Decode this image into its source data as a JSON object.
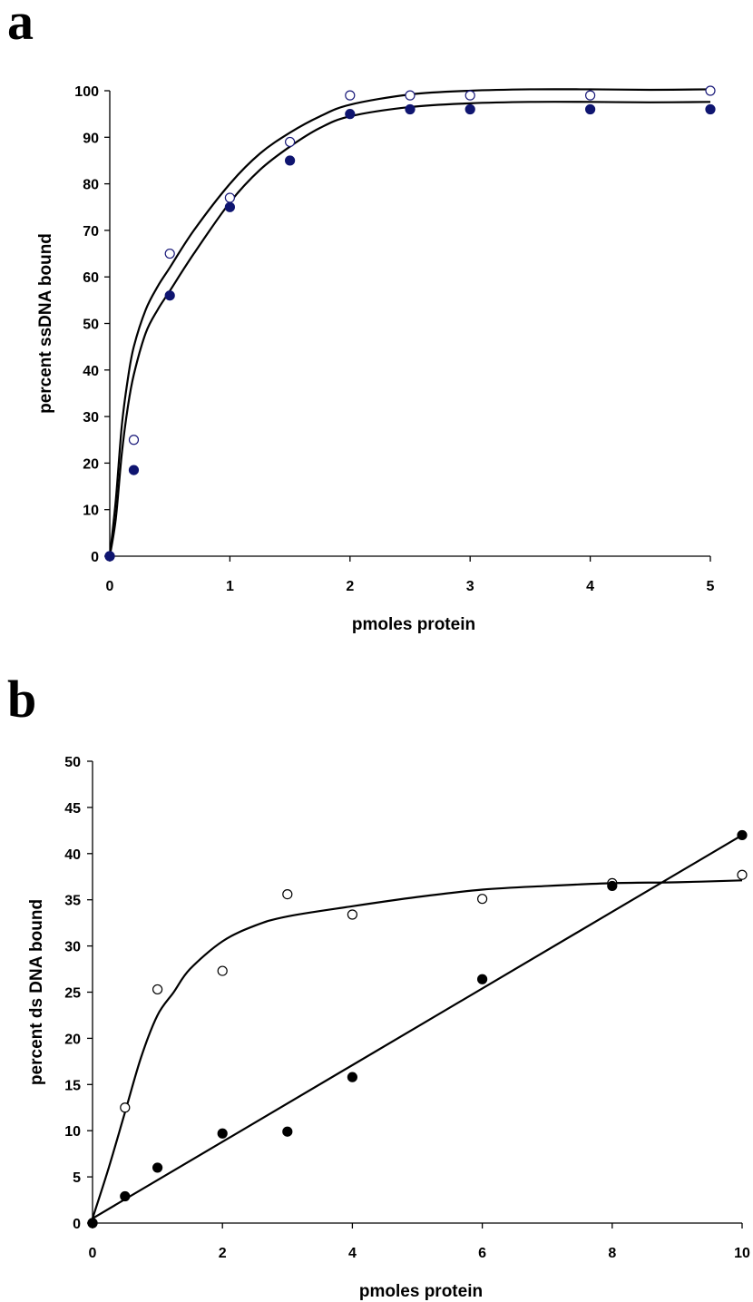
{
  "chart_data": [
    {
      "panel_label": "a",
      "type": "scatter",
      "xlabel": "pmoles protein",
      "ylabel": "percent ssDNA bound",
      "xlim": [
        0,
        5
      ],
      "ylim": [
        0,
        100
      ],
      "xticks": [
        0,
        1,
        2,
        3,
        4,
        5
      ],
      "yticks": [
        0,
        10,
        20,
        30,
        40,
        50,
        60,
        70,
        80,
        90,
        100
      ],
      "grid": false,
      "legend": "none",
      "series": [
        {
          "marker": "open-circle",
          "color": "#1a1a7a",
          "x": [
            0,
            0.2,
            0.5,
            1,
            1.5,
            2,
            2.5,
            3,
            4,
            5
          ],
          "y": [
            0,
            25,
            65,
            77,
            89,
            99,
            99,
            99,
            99,
            100
          ],
          "fit": [
            [
              0,
              0
            ],
            [
              0.05,
              12
            ],
            [
              0.1,
              28
            ],
            [
              0.15,
              38
            ],
            [
              0.2,
              45
            ],
            [
              0.3,
              53
            ],
            [
              0.4,
              58
            ],
            [
              0.5,
              62
            ],
            [
              0.7,
              70
            ],
            [
              1,
              80
            ],
            [
              1.25,
              86.5
            ],
            [
              1.5,
              91
            ],
            [
              1.75,
              94.5
            ],
            [
              2,
              97
            ],
            [
              2.5,
              99.2
            ],
            [
              3,
              100
            ],
            [
              3.5,
              100.3
            ],
            [
              4,
              100.3
            ],
            [
              4.5,
              100.2
            ],
            [
              5,
              100.3
            ]
          ]
        },
        {
          "marker": "filled-circle",
          "color": "#0f1570",
          "x": [
            0,
            0.2,
            0.5,
            1,
            1.5,
            2,
            2.5,
            3,
            4,
            5
          ],
          "y": [
            0,
            18.5,
            56,
            75,
            85,
            95,
            96,
            96,
            96,
            96
          ],
          "fit": [
            [
              0,
              0
            ],
            [
              0.05,
              8
            ],
            [
              0.1,
              22
            ],
            [
              0.15,
              32
            ],
            [
              0.2,
              39
            ],
            [
              0.3,
              48
            ],
            [
              0.4,
              53
            ],
            [
              0.5,
              57
            ],
            [
              0.7,
              65
            ],
            [
              1,
              76
            ],
            [
              1.25,
              83
            ],
            [
              1.5,
              88
            ],
            [
              1.75,
              92
            ],
            [
              2,
              94.5
            ],
            [
              2.5,
              96.5
            ],
            [
              3,
              97.3
            ],
            [
              3.5,
              97.6
            ],
            [
              4,
              97.6
            ],
            [
              4.5,
              97.5
            ],
            [
              5,
              97.6
            ]
          ]
        }
      ]
    },
    {
      "panel_label": "b",
      "type": "scatter",
      "xlabel": "pmoles protein",
      "ylabel": "percent ds DNA bound",
      "xlim": [
        0,
        10
      ],
      "ylim": [
        0,
        50
      ],
      "xticks": [
        0,
        2,
        4,
        6,
        8,
        10
      ],
      "yticks": [
        0,
        5,
        10,
        15,
        20,
        25,
        30,
        35,
        40,
        45,
        50
      ],
      "grid": false,
      "legend": "none",
      "series": [
        {
          "marker": "open-circle",
          "color": "#000000",
          "x": [
            0,
            0.5,
            1,
            2,
            3,
            4,
            6,
            8,
            10
          ],
          "y": [
            0,
            12.5,
            25.3,
            27.3,
            35.6,
            33.4,
            35.1,
            36.8,
            37.7
          ],
          "fit": [
            [
              0,
              0.5
            ],
            [
              0.25,
              6
            ],
            [
              0.5,
              12
            ],
            [
              0.75,
              18
            ],
            [
              1,
              22.5
            ],
            [
              1.25,
              25
            ],
            [
              1.5,
              27.5
            ],
            [
              2,
              30.5
            ],
            [
              2.5,
              32.2
            ],
            [
              3,
              33.2
            ],
            [
              4,
              34.3
            ],
            [
              5,
              35.3
            ],
            [
              6,
              36.1
            ],
            [
              7,
              36.5
            ],
            [
              8,
              36.8
            ],
            [
              9,
              36.9
            ],
            [
              10,
              37.1
            ]
          ]
        },
        {
          "marker": "filled-circle",
          "color": "#000000",
          "x": [
            0,
            0.5,
            1,
            2,
            3,
            4,
            6,
            8,
            10
          ],
          "y": [
            0,
            2.9,
            6,
            9.7,
            9.9,
            15.8,
            26.4,
            36.5,
            42
          ],
          "fit": [
            [
              0,
              0.5
            ],
            [
              10,
              42
            ]
          ]
        }
      ]
    }
  ]
}
